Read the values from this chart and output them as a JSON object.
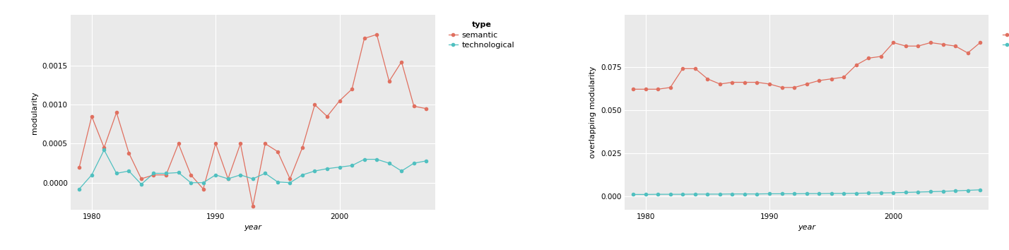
{
  "chart1": {
    "ylabel": "modularity",
    "xlabel": "year",
    "years": [
      1979,
      1980,
      1981,
      1982,
      1983,
      1984,
      1985,
      1986,
      1987,
      1988,
      1989,
      1990,
      1991,
      1992,
      1993,
      1994,
      1995,
      1996,
      1997,
      1998,
      1999,
      2000,
      2001,
      2002,
      2003,
      2004,
      2005,
      2006,
      2007
    ],
    "semantic": [
      0.0002,
      0.00085,
      0.00045,
      0.0009,
      0.00038,
      5e-05,
      0.0001,
      0.0001,
      0.0005,
      0.0001,
      -8e-05,
      0.0005,
      5e-05,
      0.0005,
      -0.0003,
      0.0005,
      0.0004,
      5e-05,
      0.00045,
      0.001,
      0.00085,
      0.00105,
      0.0012,
      0.00185,
      0.0019,
      0.0013,
      0.00155,
      0.00098,
      0.00095
    ],
    "technological": [
      -8e-05,
      0.0001,
      0.00042,
      0.00012,
      0.00015,
      -2e-05,
      0.00012,
      0.00012,
      0.00013,
      0.0,
      0.0,
      0.0001,
      5e-05,
      0.0001,
      5e-05,
      0.00012,
      1e-05,
      0.0,
      0.0001,
      0.00015,
      0.00018,
      0.0002,
      0.00022,
      0.0003,
      0.0003,
      0.00025,
      0.00015,
      0.00025,
      0.00028
    ],
    "ylim": [
      -0.00035,
      0.00215
    ],
    "yticks": [
      0.0,
      0.0005,
      0.001,
      0.0015
    ],
    "ytick_labels": [
      "0.0000",
      "0.0005",
      "0.0010",
      "0.0015"
    ],
    "xticks": [
      1980,
      1990,
      2000
    ],
    "semantic_color": "#E07060",
    "tech_color": "#50C0C0"
  },
  "chart2": {
    "ylabel": "overlapping modularity",
    "xlabel": "year",
    "years": [
      1979,
      1980,
      1981,
      1982,
      1983,
      1984,
      1985,
      1986,
      1987,
      1988,
      1989,
      1990,
      1991,
      1992,
      1993,
      1994,
      1995,
      1996,
      1997,
      1998,
      1999,
      2000,
      2001,
      2002,
      2003,
      2004,
      2005,
      2006,
      2007
    ],
    "semantic": [
      0.062,
      0.062,
      0.062,
      0.063,
      0.074,
      0.074,
      0.068,
      0.065,
      0.066,
      0.066,
      0.066,
      0.065,
      0.063,
      0.063,
      0.065,
      0.067,
      0.068,
      0.069,
      0.076,
      0.08,
      0.081,
      0.089,
      0.087,
      0.087,
      0.089,
      0.088,
      0.087,
      0.083,
      0.089
    ],
    "technological": [
      0.001,
      0.001,
      0.0011,
      0.0011,
      0.0011,
      0.0012,
      0.0012,
      0.0012,
      0.0013,
      0.0013,
      0.0013,
      0.0014,
      0.0014,
      0.0014,
      0.0015,
      0.0015,
      0.0016,
      0.0016,
      0.0017,
      0.0018,
      0.0019,
      0.002,
      0.0022,
      0.0024,
      0.0026,
      0.0028,
      0.0031,
      0.0034,
      0.0037
    ],
    "ylim": [
      -0.008,
      0.105
    ],
    "yticks": [
      0.0,
      0.025,
      0.05,
      0.075
    ],
    "ytick_labels": [
      "0.000",
      "0.025",
      "0.050",
      "0.075"
    ],
    "xticks": [
      1980,
      1990,
      2000
    ],
    "semantic_color": "#E07060",
    "tech_color": "#50C0C0"
  },
  "fig_bg_color": "#FFFFFF",
  "plot_bg_color": "#EAEAEA",
  "grid_color": "#FFFFFF",
  "legend_title": "type",
  "legend_semantic": "semantic",
  "legend_tech": "technological",
  "marker_size": 3,
  "line_width": 0.9,
  "font_size_axis_label": 8,
  "font_size_tick": 7.5,
  "font_size_legend": 8
}
